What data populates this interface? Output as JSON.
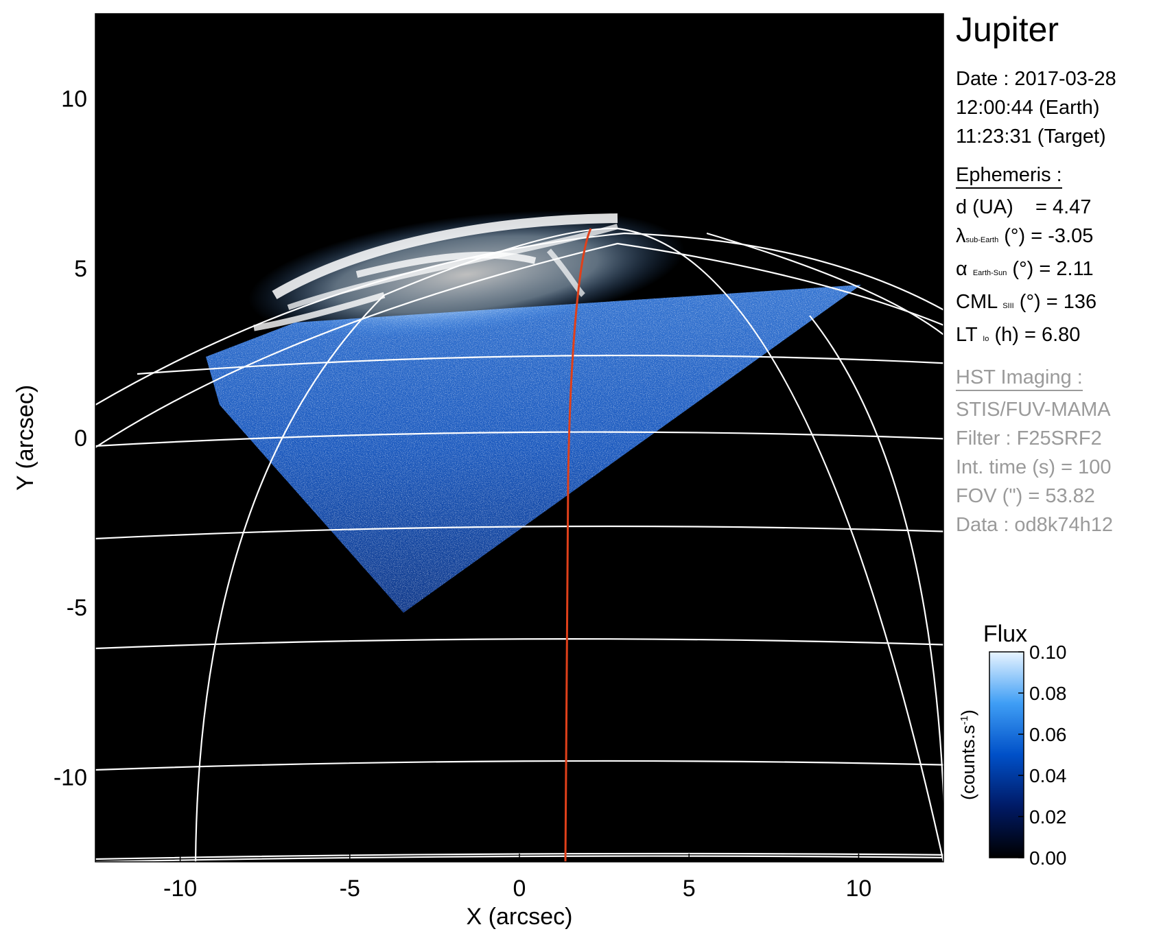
{
  "info": {
    "title": "Jupiter",
    "date_line": "Date : 2017-03-28",
    "earth_time": "12:00:44 (Earth)",
    "target_time": "11:23:31 (Target)",
    "ephemeris_header": "Ephemeris :",
    "d_label": "d (UA)",
    "d_value": "= 4.47",
    "lat_symbol": "λ",
    "lat_sub": "sub-Earth",
    "lat_rest": "(°) = -3.05",
    "alpha_symbol": "α",
    "alpha_sub": "Earth-Sun",
    "alpha_rest": "(°) = 2.11",
    "cml_symbol": "CML",
    "cml_sub": "SIII",
    "cml_rest": "(°) = 136",
    "lt_symbol": "LT",
    "lt_sub": "Io",
    "lt_rest": "(h) = 6.80",
    "hst_header": "HST Imaging :",
    "instrument": "STIS/FUV-MAMA",
    "filter": "Filter : F25SRF2",
    "int_time": "Int. time (s) = 100",
    "fov": "FOV (\") = 53.82",
    "data_id": "Data : od8k74h12"
  },
  "axes": {
    "xlabel": "X (arcsec)",
    "ylabel": "Y (arcsec)",
    "xticks": [
      -10,
      -5,
      0,
      5,
      10
    ],
    "yticks": [
      10,
      5,
      0,
      -5,
      -10
    ],
    "xlim": [
      -12.5,
      12.5
    ],
    "ylim": [
      -12.5,
      12.5
    ]
  },
  "colorbar": {
    "title": "Flux",
    "unit_label": "(counts.s",
    "unit_sup": "-1",
    "unit_close": ")",
    "ticks": [
      "0.00",
      "0.02",
      "0.04",
      "0.06",
      "0.08",
      "0.10"
    ],
    "range": [
      0,
      0.1
    ]
  },
  "image": {
    "background": "#000000",
    "colormap": [
      "#000000",
      "#001a66",
      "#0050c8",
      "#3f9ef5",
      "#dff0ff"
    ],
    "grid_color": "#ffffff",
    "footprint_color": "#e0401a"
  }
}
